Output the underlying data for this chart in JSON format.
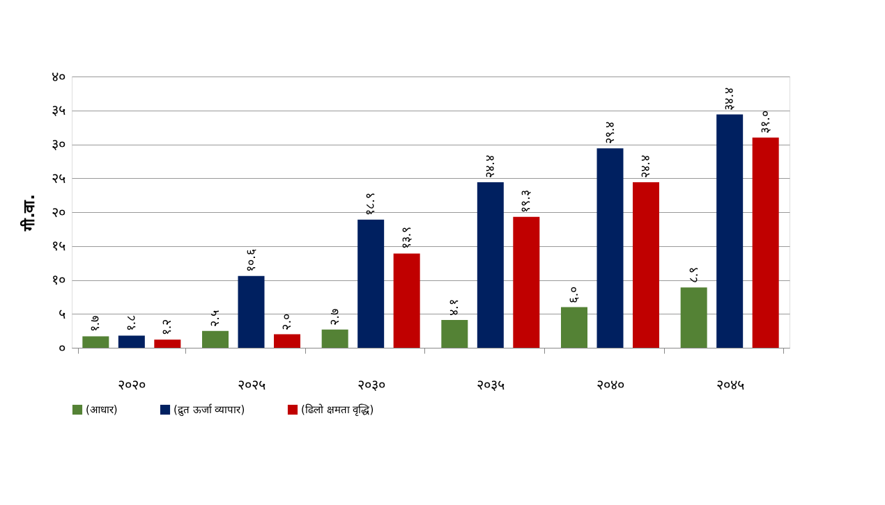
{
  "chart_data": {
    "type": "bar",
    "ylabel": "गी.वा.",
    "categories": [
      "२०२०",
      "२०२५",
      "२०३०",
      "२०३५",
      "२०४०",
      "२०४५"
    ],
    "series": [
      {
        "name": "(आधार)",
        "color": "#548235",
        "values": [
          1.7,
          2.5,
          2.7,
          4.1,
          6.0,
          8.9
        ],
        "value_labels": [
          "१.७",
          "२.५",
          "२.७",
          "४.१",
          "६.०",
          "८.९"
        ]
      },
      {
        "name": "(द्रुत ऊर्जा व्यापार)",
        "color": "#002060",
        "values": [
          1.8,
          10.6,
          18.9,
          24.4,
          29.4,
          34.4
        ],
        "value_labels": [
          "१.८",
          "१०.६",
          "१८.९",
          "२४.४",
          "२९.४",
          "३४.४"
        ]
      },
      {
        "name": "(ढिलो क्षमता वृद्धि)",
        "color": "#c00000",
        "values": [
          1.2,
          2.0,
          13.9,
          19.3,
          24.4,
          31.0
        ],
        "value_labels": [
          "१.२",
          "२.०",
          "१३.९",
          "१९.३",
          "२४.४",
          "३१.०"
        ]
      }
    ],
    "ylim": [
      0,
      40
    ],
    "yticks": [
      {
        "value": 0,
        "label": "०"
      },
      {
        "value": 5,
        "label": "५"
      },
      {
        "value": 10,
        "label": "१०"
      },
      {
        "value": 15,
        "label": "१५"
      },
      {
        "value": 20,
        "label": "२०"
      },
      {
        "value": 25,
        "label": "२५"
      },
      {
        "value": 30,
        "label": "३०"
      },
      {
        "value": 35,
        "label": "३५"
      },
      {
        "value": 40,
        "label": "४०"
      }
    ],
    "grid": "y",
    "legend": "bottom"
  }
}
